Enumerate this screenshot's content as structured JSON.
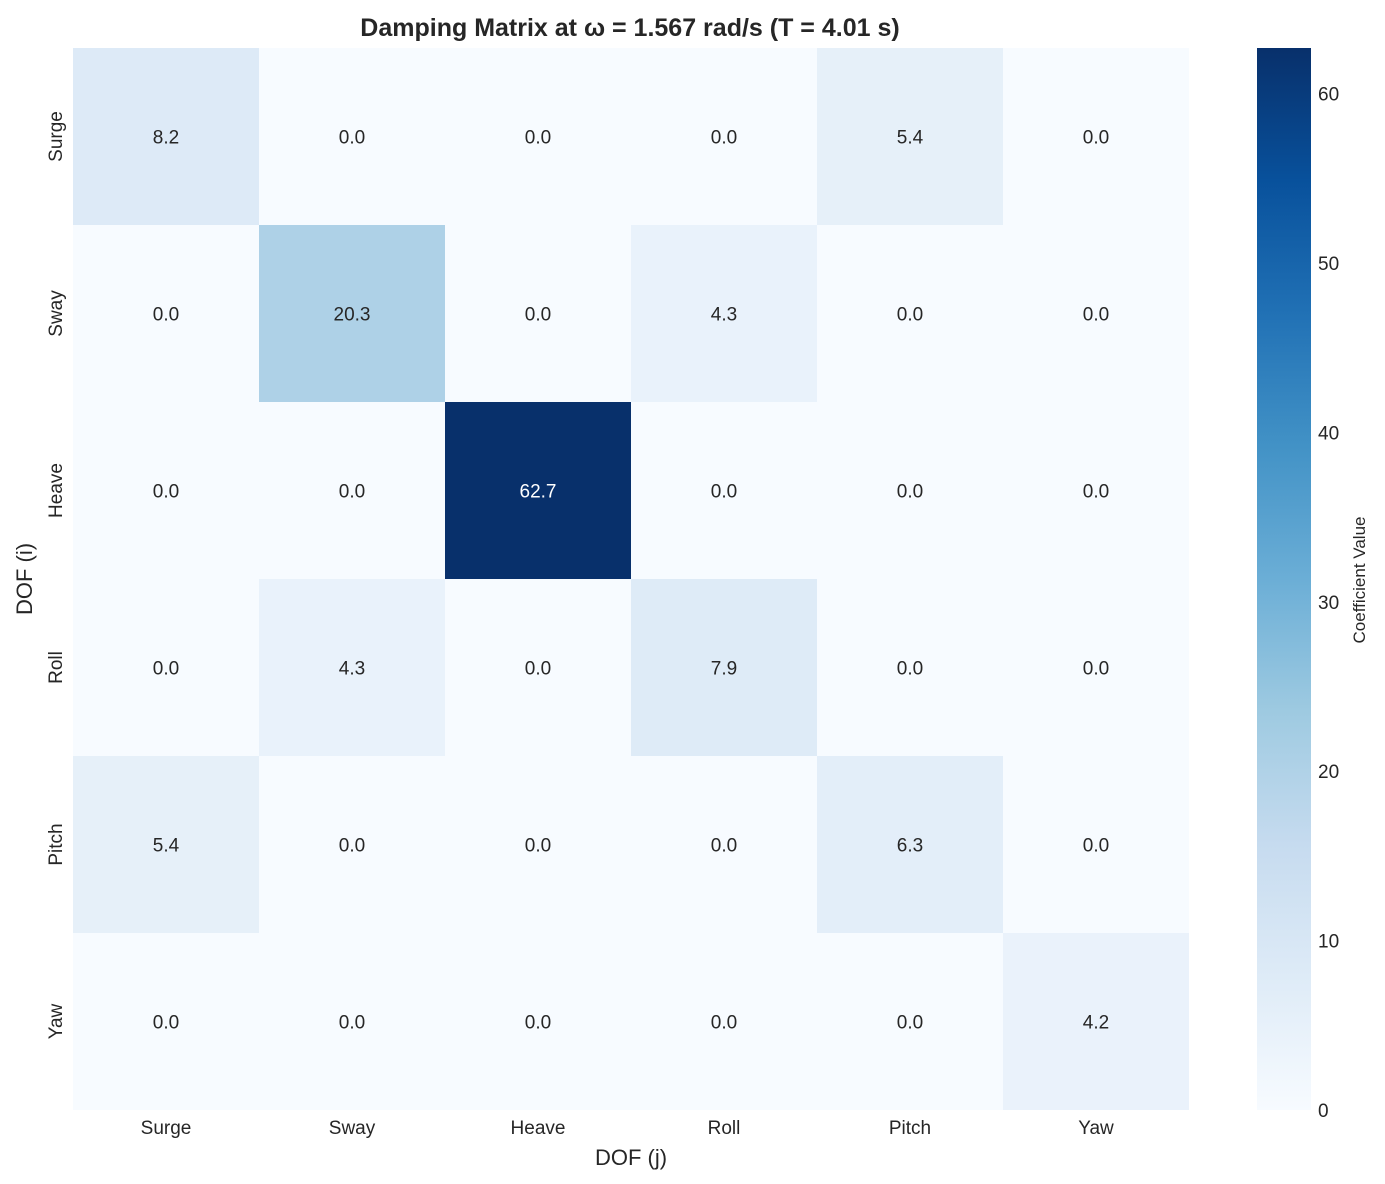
{
  "chart_data": {
    "type": "heatmap",
    "title": "Damping Matrix at ω = 1.567 rad/s (T = 4.01 s)",
    "xlabel": "DOF (j)",
    "ylabel": "DOF (i)",
    "x_categories": [
      "Surge",
      "Sway",
      "Heave",
      "Roll",
      "Pitch",
      "Yaw"
    ],
    "y_categories": [
      "Surge",
      "Sway",
      "Heave",
      "Roll",
      "Pitch",
      "Yaw"
    ],
    "values": [
      [
        8.2,
        0.0,
        0.0,
        0.0,
        5.4,
        0.0
      ],
      [
        0.0,
        20.3,
        0.0,
        4.3,
        0.0,
        0.0
      ],
      [
        0.0,
        0.0,
        62.7,
        0.0,
        0.0,
        0.0
      ],
      [
        0.0,
        4.3,
        0.0,
        7.9,
        0.0,
        0.0
      ],
      [
        5.4,
        0.0,
        0.0,
        0.0,
        6.3,
        0.0
      ],
      [
        0.0,
        0.0,
        0.0,
        0.0,
        0.0,
        4.2
      ]
    ],
    "value_format": "0.0",
    "colormap": "Blues",
    "vmin": 0,
    "vmax": 62.7,
    "colorbar": {
      "label": "Coefficient Value",
      "ticks": [
        0,
        10,
        20,
        30,
        40,
        50,
        60
      ]
    },
    "grid": false
  }
}
